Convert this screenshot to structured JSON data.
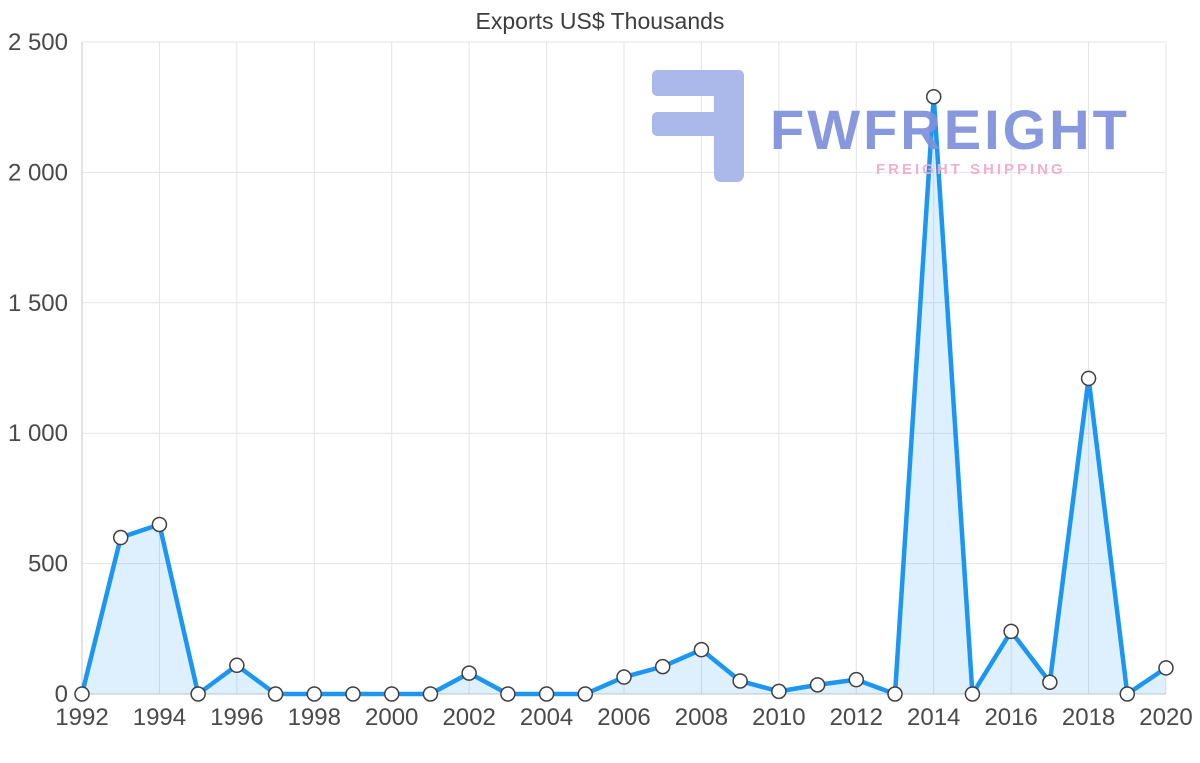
{
  "title": "Exports US$ Thousands",
  "watermark": {
    "brand": "FWFREIGHT",
    "tagline": "FREIGHT SHIPPING",
    "logo_icon": "fwfreight-logo-icon"
  },
  "colors": {
    "line": "#1b96f3",
    "area": "rgba(33,150,243,0.15)",
    "marker_fill": "#ffffff",
    "marker_stroke": "#3f3f3f",
    "grid": "#e4e4e4",
    "axis_line": "#c9c9c9",
    "axis_text": "#4a4a4a",
    "title_text": "#3d3d3d",
    "brand_text": "#7d90dc",
    "tagline_text": "#f3a9c8",
    "logo": "#a3b4e8"
  },
  "chart_data": {
    "type": "line",
    "title": "Exports US$ Thousands",
    "xlabel": "",
    "ylabel": "",
    "x": [
      1992,
      1993,
      1994,
      1995,
      1996,
      1997,
      1998,
      1999,
      2000,
      2001,
      2002,
      2003,
      2004,
      2005,
      2006,
      2007,
      2008,
      2009,
      2010,
      2011,
      2012,
      2013,
      2014,
      2015,
      2016,
      2017,
      2018,
      2019,
      2020
    ],
    "series": [
      {
        "name": "Exports US$ Thousands",
        "values": [
          0,
          600,
          650,
          0,
          110,
          0,
          0,
          0,
          0,
          0,
          80,
          0,
          0,
          0,
          65,
          105,
          170,
          50,
          10,
          35,
          55,
          0,
          2290,
          0,
          240,
          45,
          1210,
          0,
          100
        ]
      }
    ],
    "ylim": [
      0,
      2500
    ],
    "yticks": [
      0,
      500,
      1000,
      1500,
      2000,
      2500
    ],
    "ytick_labels": [
      "0",
      "500",
      "1 000",
      "1 500",
      "2 000",
      "2 500"
    ],
    "xtick_labels": [
      "1992",
      "1994",
      "1996",
      "1998",
      "2000",
      "2002",
      "2004",
      "2006",
      "2008",
      "2010",
      "2012",
      "2014",
      "2016",
      "2018",
      "2020"
    ],
    "grid": true,
    "legend": false,
    "area_fill": true,
    "markers": true
  }
}
